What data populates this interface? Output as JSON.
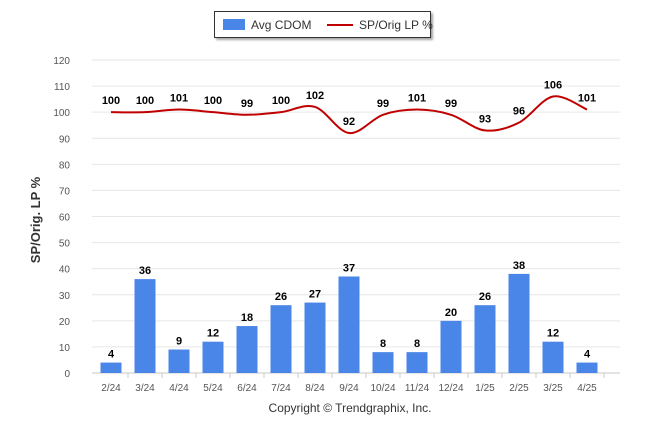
{
  "chart_data": {
    "type": "bar+line",
    "categories": [
      "2/24",
      "3/24",
      "4/24",
      "5/24",
      "6/24",
      "7/24",
      "8/24",
      "9/24",
      "10/24",
      "11/24",
      "12/24",
      "1/25",
      "2/25",
      "3/25",
      "4/25"
    ],
    "series": [
      {
        "name": "Avg CDOM",
        "type": "bar",
        "color": "#4a86e8",
        "values": [
          4,
          36,
          9,
          12,
          18,
          26,
          27,
          37,
          8,
          8,
          20,
          26,
          38,
          12,
          4
        ]
      },
      {
        "name": "SP/Orig LP %",
        "type": "line",
        "color": "#c00000",
        "values": [
          100,
          100,
          101,
          100,
          99,
          100,
          102,
          92,
          99,
          101,
          99,
          93,
          96,
          106,
          101
        ]
      }
    ],
    "ylabel": "SP/Orig. LP %",
    "ylim": [
      0,
      120
    ],
    "yticks": [
      0,
      10,
      20,
      30,
      40,
      50,
      60,
      70,
      80,
      90,
      100,
      110,
      120
    ],
    "grid": true,
    "legend_position": "top-center"
  },
  "legend": {
    "bar_label": "Avg CDOM",
    "line_label": "SP/Orig LP %"
  },
  "footer": {
    "copyright": "Copyright © Trendgraphix, Inc."
  }
}
